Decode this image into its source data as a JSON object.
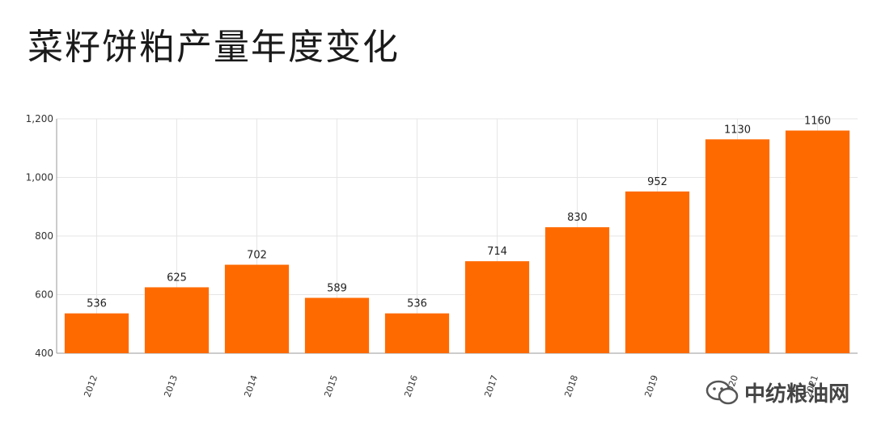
{
  "title": "菜籽饼粕产量年度变化",
  "watermark": "中纺粮油网",
  "colors": {
    "bar": "#ff6a00",
    "grid": "#e6e6e6",
    "axis": "#999999"
  },
  "chart_data": {
    "type": "bar",
    "title": "菜籽饼粕产量年度变化",
    "categories": [
      "2012",
      "2013",
      "2014",
      "2015",
      "2016",
      "2017",
      "2018",
      "2019",
      "2020",
      "2021"
    ],
    "values": [
      536,
      625,
      702,
      589,
      536,
      714,
      830,
      952,
      1130,
      1160
    ],
    "data_labels": [
      "536",
      "625",
      "702",
      "589",
      "536",
      "714",
      "830",
      "952",
      "1130",
      "1160"
    ],
    "ylim": [
      400,
      1200
    ],
    "yticks": [
      400,
      600,
      800,
      1000,
      1200
    ],
    "ytick_labels": [
      "400",
      "600",
      "800",
      "1,000",
      "1,200"
    ],
    "xlabel": "",
    "ylabel": "",
    "grid": true,
    "legend": "none"
  }
}
